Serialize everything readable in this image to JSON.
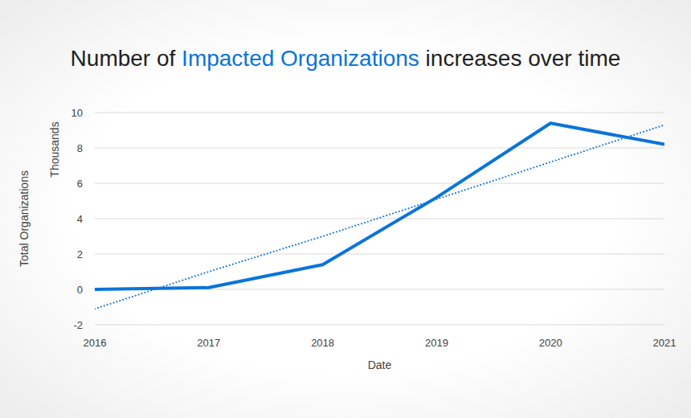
{
  "chart_data": {
    "type": "line",
    "title": "Number of Impacted Organizations increases over time",
    "title_highlight": "Impacted Organizations",
    "x_label": "Date",
    "y_label": "Total Organizations",
    "y_unit_label": "Thousands",
    "x": [
      2016,
      2017,
      2018,
      2019,
      2020,
      2021
    ],
    "xlim": [
      2016,
      2021
    ],
    "xticks": [
      2016,
      2017,
      2018,
      2019,
      2020,
      2021
    ],
    "ylim": [
      -2,
      10
    ],
    "yticks": [
      -2,
      0,
      2,
      4,
      6,
      8,
      10
    ],
    "grid": true,
    "series": [
      {
        "values": [
          0,
          0.1,
          1.4,
          5.2,
          9.4,
          8.2
        ],
        "color": "#0a74da",
        "line_style": "solid"
      },
      {
        "values": [
          -1.1,
          1.0,
          3.0,
          5.1,
          7.2,
          9.3
        ],
        "color": "#0a74da",
        "line_style": "dotted"
      }
    ]
  }
}
